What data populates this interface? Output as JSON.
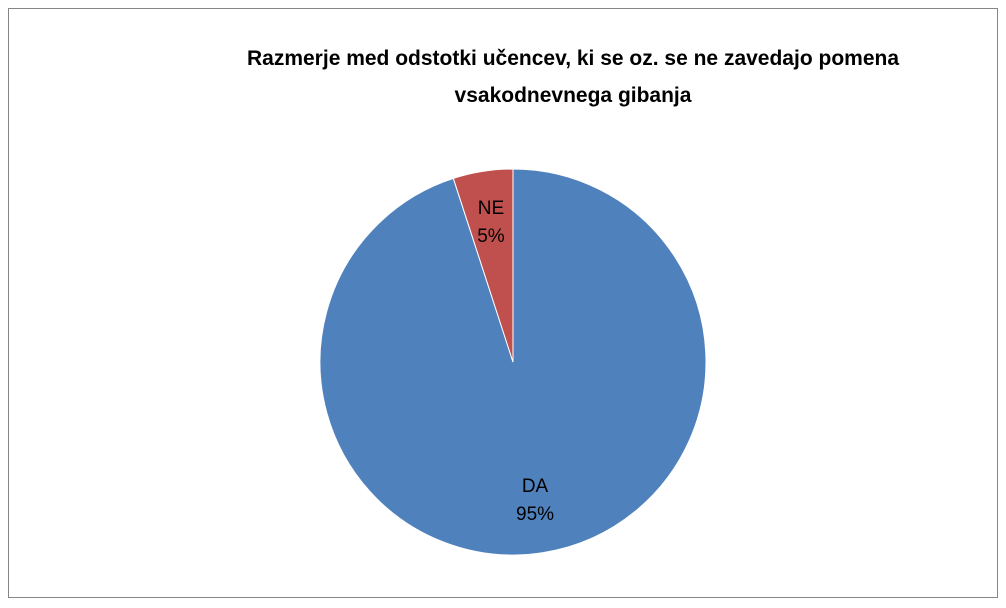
{
  "chart_data": {
    "type": "pie",
    "title": "Razmerje med odstotki učencev, ki se oz. se ne zavedajo pomena vsakodnevnega gibanja",
    "categories": [
      "DA",
      "NE"
    ],
    "values": [
      95,
      5
    ],
    "value_labels": [
      "95%",
      "5%"
    ],
    "colors": [
      "#4f81bd",
      "#c0504d"
    ]
  }
}
